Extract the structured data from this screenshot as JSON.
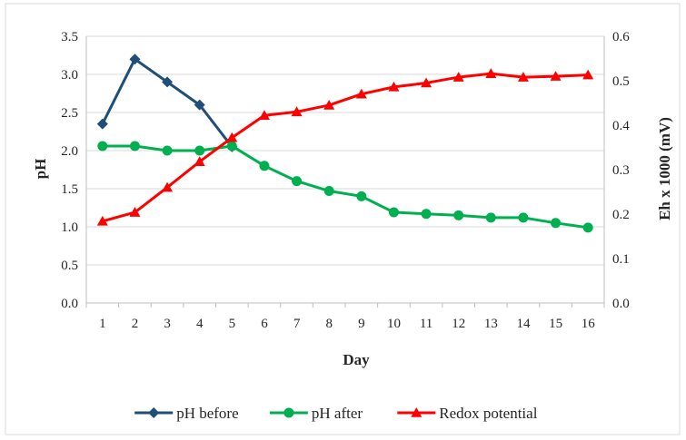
{
  "chart_data": {
    "type": "line",
    "title": "",
    "xlabel": "Day",
    "ylabel": "pH",
    "y2label": "Eh x 1000 (mV)",
    "x": [
      1,
      2,
      3,
      4,
      5,
      6,
      7,
      8,
      9,
      10,
      11,
      12,
      13,
      14,
      15,
      16
    ],
    "x_tick_labels": [
      "1",
      "2",
      "3",
      "4",
      "5",
      "6",
      "7",
      "8",
      "9",
      "10",
      "11",
      "12",
      "13",
      "14",
      "15",
      "16"
    ],
    "ylim": [
      0,
      3.5
    ],
    "y_ticks": [
      "0.0",
      "0.5",
      "1.0",
      "1.5",
      "2.0",
      "2.5",
      "3.0",
      "3.5"
    ],
    "y2lim": [
      0,
      0.6
    ],
    "y2_ticks": [
      "0.0",
      "0.1",
      "0.2",
      "0.3",
      "0.4",
      "0.5",
      "0.6"
    ],
    "grid": true,
    "legend_position": "bottom",
    "series": [
      {
        "name": "pH before",
        "axis": "left",
        "marker": "diamond",
        "color": "#1f4e79",
        "x": [
          1,
          2,
          3,
          4,
          5
        ],
        "values": [
          2.35,
          3.2,
          2.9,
          2.6,
          2.05
        ]
      },
      {
        "name": "pH after",
        "axis": "left",
        "marker": "circle",
        "color": "#00b050",
        "x": [
          1,
          2,
          3,
          4,
          5,
          6,
          7,
          8,
          9,
          10,
          11,
          12,
          13,
          14,
          15,
          16
        ],
        "values": [
          2.06,
          2.06,
          2.0,
          2.0,
          2.06,
          1.8,
          1.6,
          1.47,
          1.4,
          1.19,
          1.17,
          1.15,
          1.12,
          1.12,
          1.05,
          0.99
        ]
      },
      {
        "name": "Redox potential",
        "axis": "right",
        "marker": "triangle",
        "color": "#ff0000",
        "x": [
          1,
          2,
          3,
          4,
          5,
          6,
          7,
          8,
          9,
          10,
          11,
          12,
          13,
          14,
          15,
          16
        ],
        "values": [
          0.184,
          0.204,
          0.26,
          0.318,
          0.372,
          0.422,
          0.43,
          0.445,
          0.47,
          0.486,
          0.495,
          0.508,
          0.516,
          0.508,
          0.51,
          0.513
        ]
      }
    ]
  }
}
